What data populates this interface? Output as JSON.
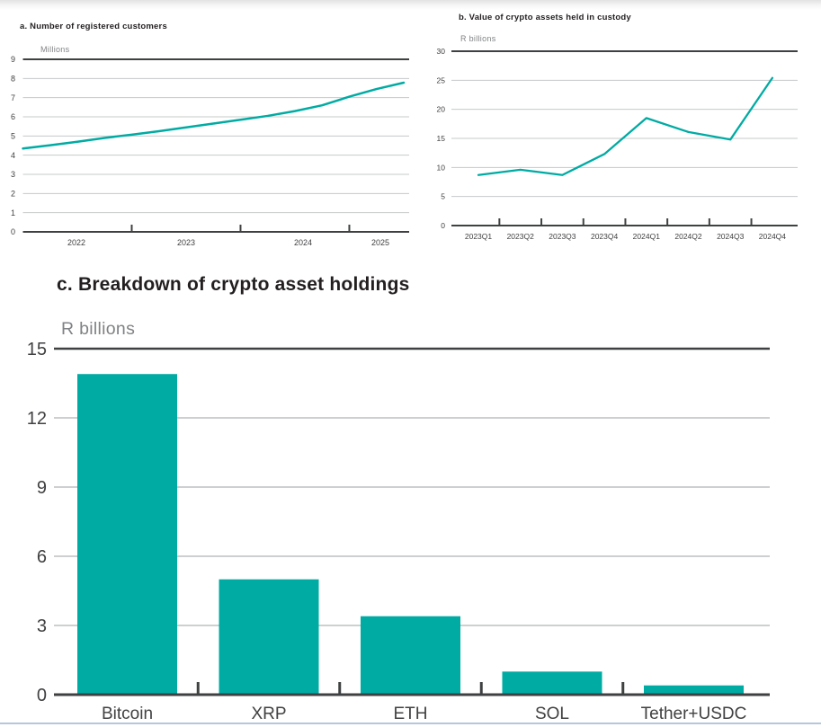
{
  "page": {
    "background": "#ffffff",
    "top_edge_color": "#e2e2e2",
    "bottom_edge_color": "#b5c8da"
  },
  "colors": {
    "accent_teal": "#00aba3",
    "grid_gray": "#c7c8ca",
    "axis_dark": "#3f4041",
    "text_dark": "#231f20",
    "text_gray": "#808285",
    "tick_text": "#414042"
  },
  "chart_data": [
    {
      "id": "a",
      "type": "line",
      "title": "a. Number of registered customers",
      "ylabel": "Millions",
      "xlabel": "",
      "ylim": [
        0,
        9
      ],
      "yticks": [
        0,
        1,
        2,
        3,
        4,
        5,
        6,
        7,
        8,
        9
      ],
      "grid": true,
      "legend": "none",
      "xlim": [
        2022,
        2025.55
      ],
      "x_tick_boundaries": [
        2023,
        2024,
        2025
      ],
      "x_labels": [
        "2022",
        "2023",
        "2024",
        "2025"
      ],
      "x": [
        2022.0,
        2022.25,
        2022.5,
        2022.75,
        2023.0,
        2023.25,
        2023.5,
        2023.75,
        2024.0,
        2024.25,
        2024.5,
        2024.75,
        2025.0,
        2025.25,
        2025.5
      ],
      "values": [
        4.35,
        4.52,
        4.7,
        4.9,
        5.07,
        5.25,
        5.45,
        5.65,
        5.85,
        6.05,
        6.3,
        6.6,
        7.05,
        7.45,
        7.78
      ]
    },
    {
      "id": "b",
      "type": "line",
      "title": "b. Value of crypto assets held in custody",
      "ylabel": "R billions",
      "xlabel": "",
      "ylim": [
        0,
        30
      ],
      "yticks": [
        0,
        5,
        10,
        15,
        20,
        25,
        30
      ],
      "grid": true,
      "legend": "none",
      "categories": [
        "2023Q1",
        "2023Q2",
        "2023Q3",
        "2023Q4",
        "2024Q1",
        "2024Q2",
        "2024Q3",
        "2024Q4"
      ],
      "values": [
        8.7,
        9.6,
        8.7,
        12.3,
        18.5,
        16.1,
        14.8,
        25.4
      ]
    },
    {
      "id": "c",
      "type": "bar",
      "title": "c. Breakdown of crypto asset holdings",
      "ylabel": "R billions",
      "xlabel": "",
      "ylim": [
        0,
        15
      ],
      "yticks": [
        0,
        3,
        6,
        9,
        12,
        15
      ],
      "grid": true,
      "legend": "none",
      "categories": [
        "Bitcoin",
        "XRP",
        "ETH",
        "SOL",
        "Tether+USDC"
      ],
      "values": [
        13.9,
        5.0,
        3.4,
        1.0,
        0.4
      ]
    }
  ]
}
